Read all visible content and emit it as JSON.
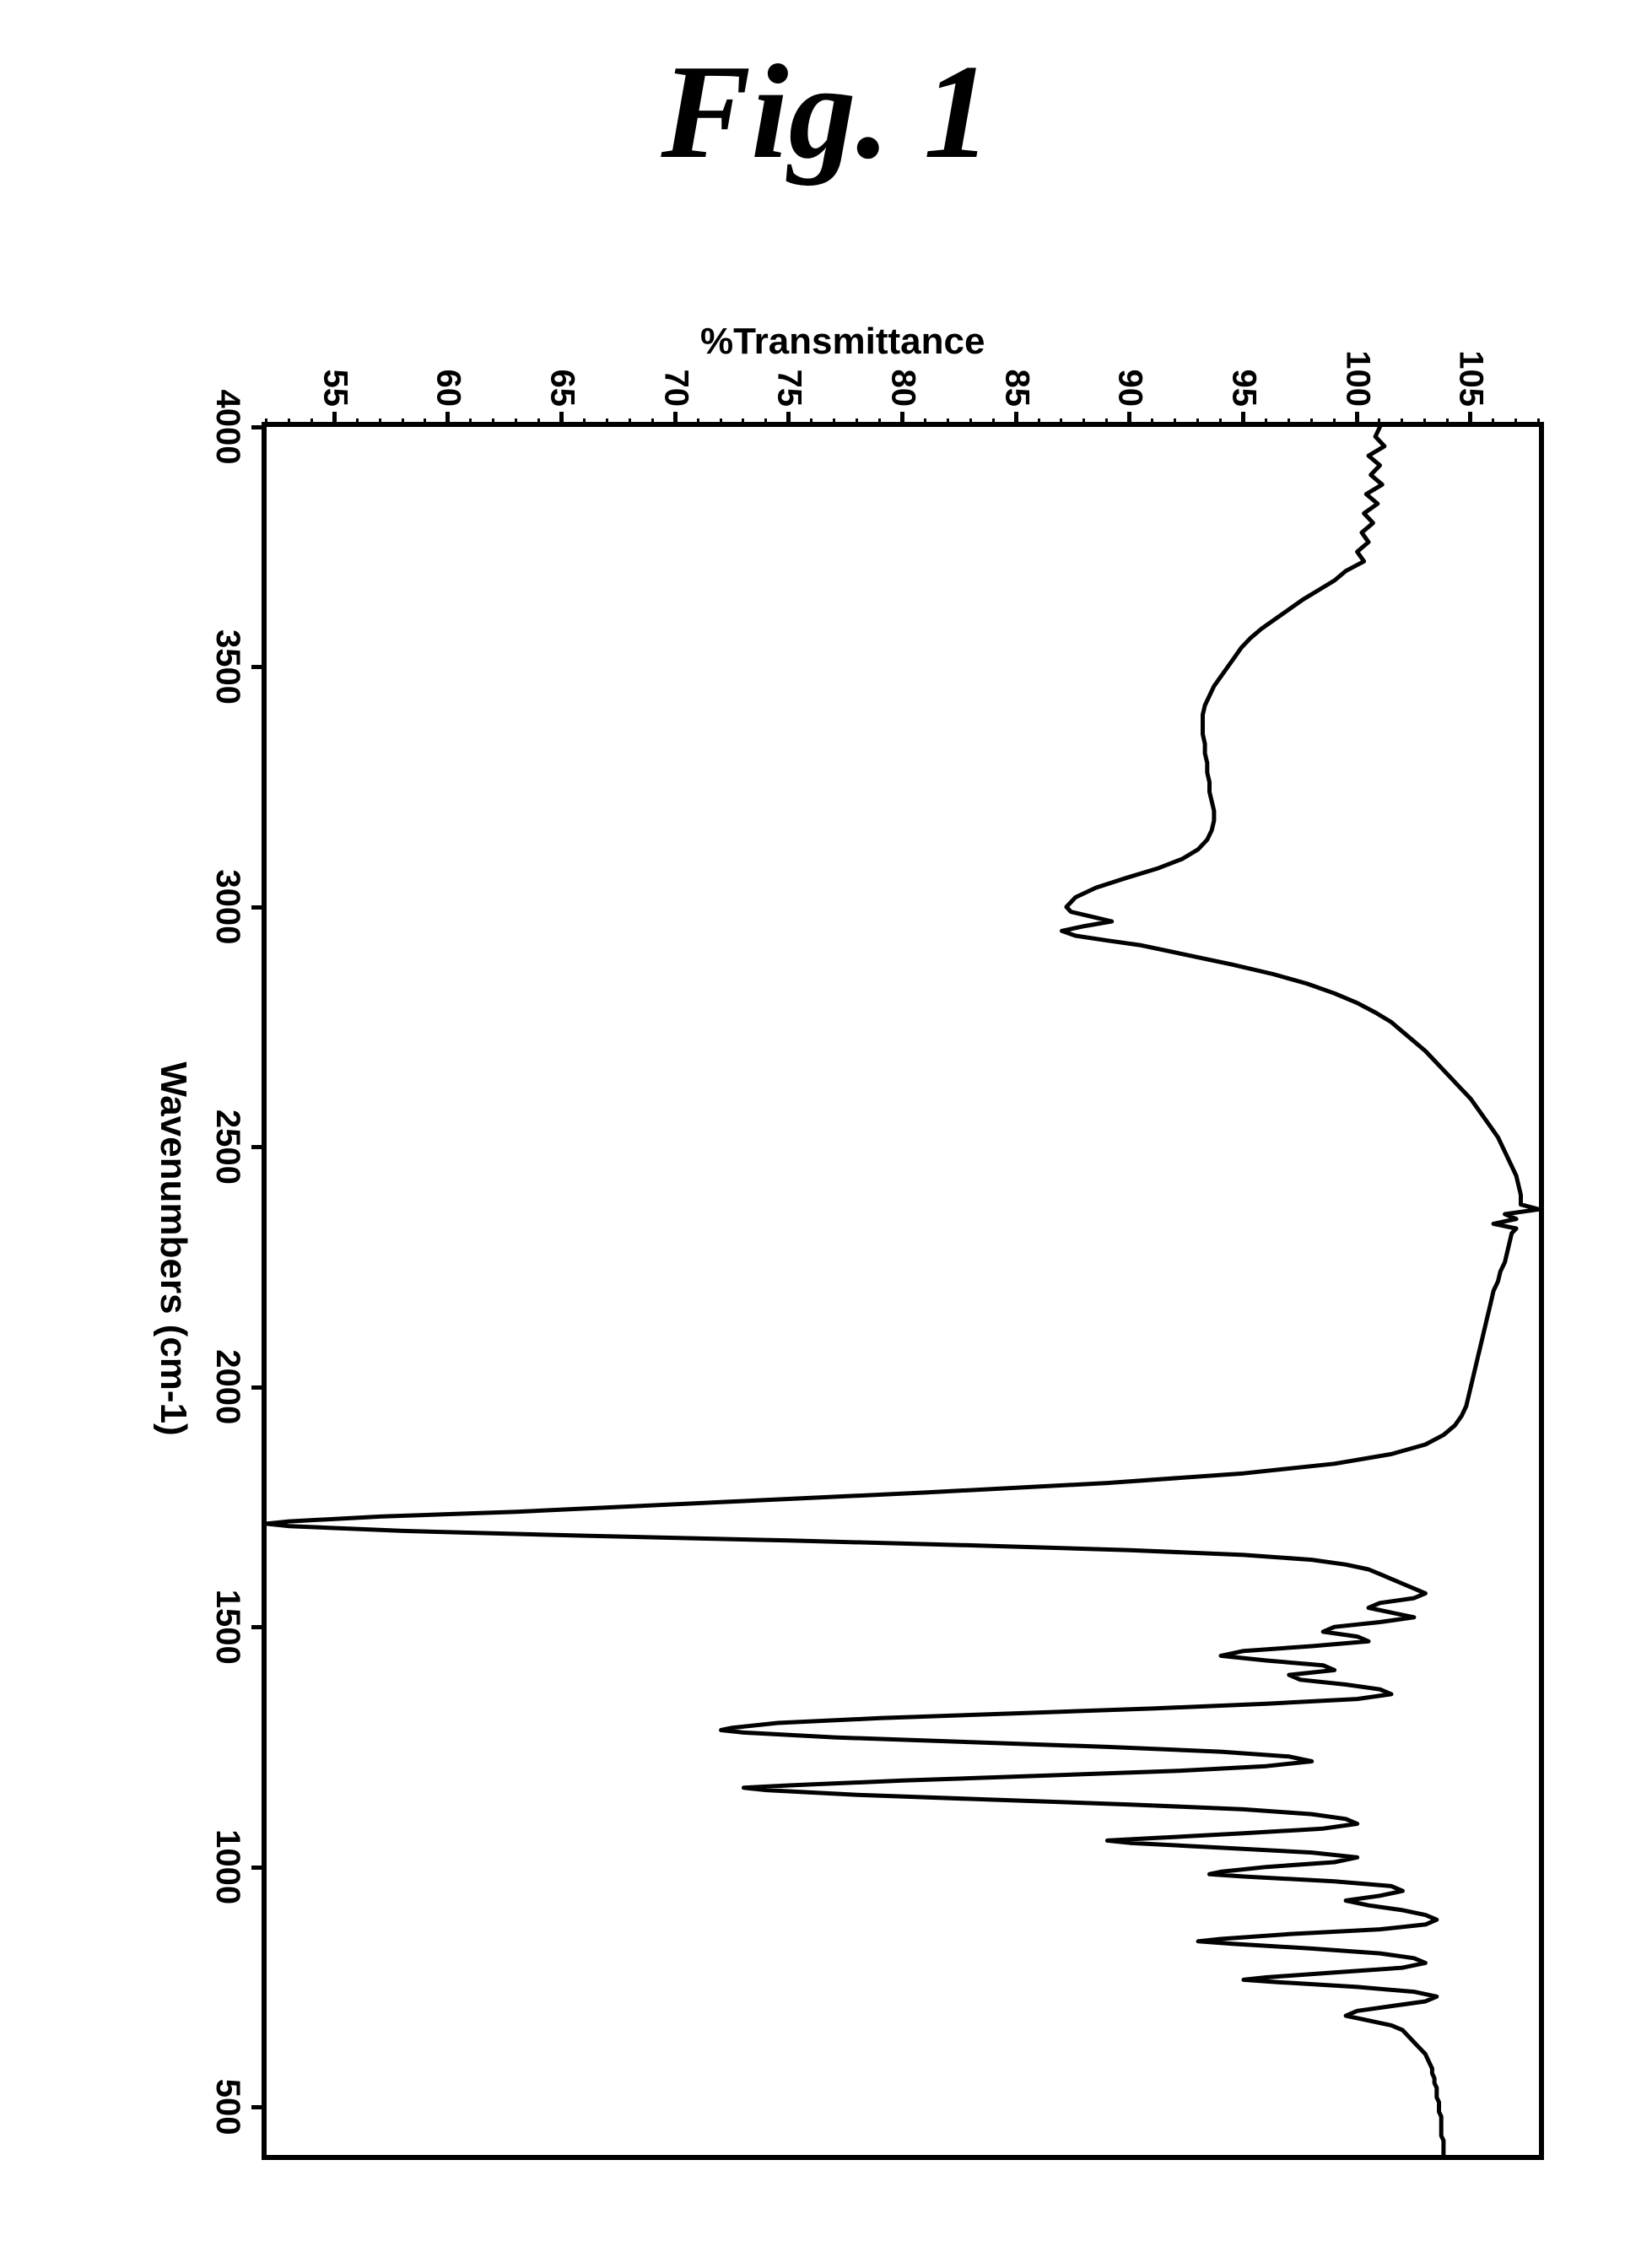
{
  "figure": {
    "title": "Fig. 1",
    "title_fontsize": 160,
    "title_font": "cursive-italic"
  },
  "ir_spectrum": {
    "type": "line",
    "xlabel": "Wavenumbers (cm-1)",
    "ylabel": "%Transmittance",
    "label_fontsize": 44,
    "tick_fontsize": 40,
    "x_axis": {
      "lim": [
        4000,
        400
      ],
      "ticks": [
        4000,
        3500,
        3000,
        2500,
        2000,
        1500,
        1000,
        500
      ],
      "reversed": true
    },
    "y_axis": {
      "lim": [
        52,
        108
      ],
      "ticks": [
        55,
        60,
        65,
        70,
        75,
        80,
        85,
        90,
        95,
        100,
        105
      ],
      "minor_step": 1
    },
    "line_color": "#000000",
    "line_width": 5,
    "background_color": "#ffffff",
    "border_color": "#000000",
    "border_width": 6,
    "data": [
      [
        4000,
        101.0
      ],
      [
        3980,
        100.8
      ],
      [
        3960,
        101.2
      ],
      [
        3940,
        100.5
      ],
      [
        3920,
        101.0
      ],
      [
        3900,
        100.6
      ],
      [
        3880,
        101.1
      ],
      [
        3860,
        100.4
      ],
      [
        3840,
        100.9
      ],
      [
        3820,
        100.3
      ],
      [
        3800,
        100.7
      ],
      [
        3780,
        100.2
      ],
      [
        3760,
        100.5
      ],
      [
        3740,
        100.0
      ],
      [
        3720,
        100.3
      ],
      [
        3700,
        99.5
      ],
      [
        3680,
        99.0
      ],
      [
        3660,
        98.3
      ],
      [
        3640,
        97.6
      ],
      [
        3620,
        97.0
      ],
      [
        3600,
        96.4
      ],
      [
        3580,
        95.8
      ],
      [
        3560,
        95.3
      ],
      [
        3540,
        94.9
      ],
      [
        3520,
        94.6
      ],
      [
        3500,
        94.3
      ],
      [
        3480,
        94.0
      ],
      [
        3460,
        93.7
      ],
      [
        3440,
        93.5
      ],
      [
        3420,
        93.3
      ],
      [
        3400,
        93.2
      ],
      [
        3380,
        93.2
      ],
      [
        3360,
        93.2
      ],
      [
        3340,
        93.3
      ],
      [
        3320,
        93.3
      ],
      [
        3300,
        93.4
      ],
      [
        3280,
        93.4
      ],
      [
        3260,
        93.5
      ],
      [
        3240,
        93.5
      ],
      [
        3220,
        93.6
      ],
      [
        3200,
        93.7
      ],
      [
        3180,
        93.7
      ],
      [
        3160,
        93.6
      ],
      [
        3140,
        93.4
      ],
      [
        3120,
        93.0
      ],
      [
        3100,
        92.3
      ],
      [
        3080,
        91.2
      ],
      [
        3060,
        89.8
      ],
      [
        3040,
        88.5
      ],
      [
        3020,
        87.6
      ],
      [
        3000,
        87.2
      ],
      [
        2990,
        87.4
      ],
      [
        2980,
        88.3
      ],
      [
        2970,
        89.2
      ],
      [
        2960,
        88.0
      ],
      [
        2950,
        87.0
      ],
      [
        2940,
        87.6
      ],
      [
        2930,
        89.0
      ],
      [
        2920,
        90.5
      ],
      [
        2900,
        92.5
      ],
      [
        2880,
        94.5
      ],
      [
        2860,
        96.3
      ],
      [
        2840,
        97.8
      ],
      [
        2820,
        99.0
      ],
      [
        2800,
        100.0
      ],
      [
        2780,
        100.8
      ],
      [
        2760,
        101.5
      ],
      [
        2740,
        102.0
      ],
      [
        2720,
        102.5
      ],
      [
        2700,
        103.0
      ],
      [
        2680,
        103.4
      ],
      [
        2660,
        103.8
      ],
      [
        2640,
        104.2
      ],
      [
        2620,
        104.6
      ],
      [
        2600,
        105.0
      ],
      [
        2580,
        105.3
      ],
      [
        2560,
        105.6
      ],
      [
        2540,
        105.9
      ],
      [
        2520,
        106.2
      ],
      [
        2500,
        106.4
      ],
      [
        2480,
        106.6
      ],
      [
        2460,
        106.8
      ],
      [
        2440,
        107.0
      ],
      [
        2420,
        107.1
      ],
      [
        2400,
        107.2
      ],
      [
        2380,
        107.2
      ],
      [
        2370,
        108.0
      ],
      [
        2360,
        106.5
      ],
      [
        2350,
        107.0
      ],
      [
        2340,
        106.0
      ],
      [
        2330,
        107.0
      ],
      [
        2320,
        106.8
      ],
      [
        2300,
        106.7
      ],
      [
        2280,
        106.6
      ],
      [
        2260,
        106.5
      ],
      [
        2240,
        106.3
      ],
      [
        2220,
        106.2
      ],
      [
        2200,
        106.0
      ],
      [
        2180,
        105.9
      ],
      [
        2160,
        105.8
      ],
      [
        2140,
        105.7
      ],
      [
        2120,
        105.6
      ],
      [
        2100,
        105.5
      ],
      [
        2080,
        105.4
      ],
      [
        2060,
        105.3
      ],
      [
        2040,
        105.2
      ],
      [
        2020,
        105.1
      ],
      [
        2000,
        105.0
      ],
      [
        1980,
        104.9
      ],
      [
        1960,
        104.8
      ],
      [
        1940,
        104.6
      ],
      [
        1920,
        104.3
      ],
      [
        1900,
        103.8
      ],
      [
        1880,
        103.0
      ],
      [
        1860,
        101.5
      ],
      [
        1840,
        99.0
      ],
      [
        1820,
        95.0
      ],
      [
        1800,
        89.0
      ],
      [
        1780,
        81.0
      ],
      [
        1760,
        72.0
      ],
      [
        1740,
        63.0
      ],
      [
        1730,
        57.0
      ],
      [
        1720,
        53.0
      ],
      [
        1715,
        52.0
      ],
      [
        1710,
        53.0
      ],
      [
        1700,
        58.0
      ],
      [
        1690,
        66.0
      ],
      [
        1680,
        75.0
      ],
      [
        1670,
        83.0
      ],
      [
        1660,
        90.0
      ],
      [
        1650,
        95.0
      ],
      [
        1640,
        98.0
      ],
      [
        1630,
        99.5
      ],
      [
        1620,
        100.5
      ],
      [
        1610,
        101.0
      ],
      [
        1600,
        101.5
      ],
      [
        1590,
        102.0
      ],
      [
        1580,
        102.5
      ],
      [
        1570,
        103.0
      ],
      [
        1560,
        102.5
      ],
      [
        1550,
        101.0
      ],
      [
        1540,
        100.5
      ],
      [
        1530,
        101.5
      ],
      [
        1520,
        102.5
      ],
      [
        1510,
        101.0
      ],
      [
        1500,
        99.0
      ],
      [
        1490,
        98.5
      ],
      [
        1480,
        100.0
      ],
      [
        1470,
        100.5
      ],
      [
        1460,
        98.0
      ],
      [
        1450,
        95.0
      ],
      [
        1440,
        94.0
      ],
      [
        1430,
        96.0
      ],
      [
        1420,
        98.5
      ],
      [
        1410,
        99.0
      ],
      [
        1400,
        97.0
      ],
      [
        1390,
        97.5
      ],
      [
        1380,
        99.5
      ],
      [
        1370,
        101.0
      ],
      [
        1360,
        101.5
      ],
      [
        1350,
        100.0
      ],
      [
        1340,
        96.0
      ],
      [
        1330,
        91.0
      ],
      [
        1320,
        85.0
      ],
      [
        1310,
        79.0
      ],
      [
        1300,
        74.5
      ],
      [
        1290,
        72.5
      ],
      [
        1285,
        72.0
      ],
      [
        1280,
        73.0
      ],
      [
        1270,
        77.0
      ],
      [
        1260,
        83.0
      ],
      [
        1250,
        89.0
      ],
      [
        1240,
        94.0
      ],
      [
        1230,
        97.0
      ],
      [
        1220,
        98.0
      ],
      [
        1210,
        96.0
      ],
      [
        1200,
        92.0
      ],
      [
        1190,
        86.0
      ],
      [
        1180,
        80.0
      ],
      [
        1170,
        75.0
      ],
      [
        1165,
        73.0
      ],
      [
        1160,
        74.0
      ],
      [
        1150,
        78.0
      ],
      [
        1140,
        84.0
      ],
      [
        1130,
        90.0
      ],
      [
        1120,
        95.0
      ],
      [
        1110,
        98.0
      ],
      [
        1100,
        99.5
      ],
      [
        1090,
        100.0
      ],
      [
        1080,
        98.5
      ],
      [
        1070,
        95.0
      ],
      [
        1060,
        91.0
      ],
      [
        1055,
        89.0
      ],
      [
        1050,
        90.0
      ],
      [
        1040,
        94.0
      ],
      [
        1030,
        98.0
      ],
      [
        1020,
        100.0
      ],
      [
        1010,
        99.0
      ],
      [
        1000,
        96.0
      ],
      [
        990,
        94.0
      ],
      [
        985,
        93.5
      ],
      [
        980,
        95.0
      ],
      [
        970,
        99.0
      ],
      [
        960,
        101.5
      ],
      [
        950,
        102.0
      ],
      [
        940,
        101.0
      ],
      [
        930,
        99.5
      ],
      [
        920,
        100.5
      ],
      [
        910,
        102.0
      ],
      [
        900,
        103.0
      ],
      [
        890,
        103.5
      ],
      [
        880,
        103.0
      ],
      [
        870,
        101.0
      ],
      [
        860,
        97.0
      ],
      [
        850,
        94.0
      ],
      [
        845,
        93.0
      ],
      [
        840,
        94.5
      ],
      [
        830,
        98.0
      ],
      [
        820,
        101.0
      ],
      [
        810,
        102.5
      ],
      [
        800,
        103.0
      ],
      [
        790,
        102.0
      ],
      [
        780,
        99.0
      ],
      [
        770,
        96.0
      ],
      [
        765,
        95.0
      ],
      [
        760,
        96.5
      ],
      [
        750,
        100.0
      ],
      [
        740,
        102.5
      ],
      [
        730,
        103.5
      ],
      [
        720,
        103.0
      ],
      [
        710,
        101.5
      ],
      [
        700,
        100.0
      ],
      [
        690,
        99.5
      ],
      [
        680,
        100.5
      ],
      [
        670,
        101.5
      ],
      [
        660,
        102.0
      ],
      [
        650,
        102.2
      ],
      [
        640,
        102.4
      ],
      [
        630,
        102.6
      ],
      [
        620,
        102.8
      ],
      [
        610,
        103.0
      ],
      [
        600,
        103.1
      ],
      [
        590,
        103.2
      ],
      [
        580,
        103.3
      ],
      [
        570,
        103.3
      ],
      [
        560,
        103.4
      ],
      [
        550,
        103.4
      ],
      [
        540,
        103.5
      ],
      [
        530,
        103.5
      ],
      [
        520,
        103.5
      ],
      [
        510,
        103.6
      ],
      [
        500,
        103.6
      ],
      [
        490,
        103.6
      ],
      [
        480,
        103.7
      ],
      [
        470,
        103.7
      ],
      [
        460,
        103.7
      ],
      [
        450,
        103.7
      ],
      [
        440,
        103.7
      ],
      [
        430,
        103.8
      ],
      [
        420,
        103.8
      ],
      [
        410,
        103.8
      ],
      [
        400,
        103.8
      ]
    ]
  }
}
